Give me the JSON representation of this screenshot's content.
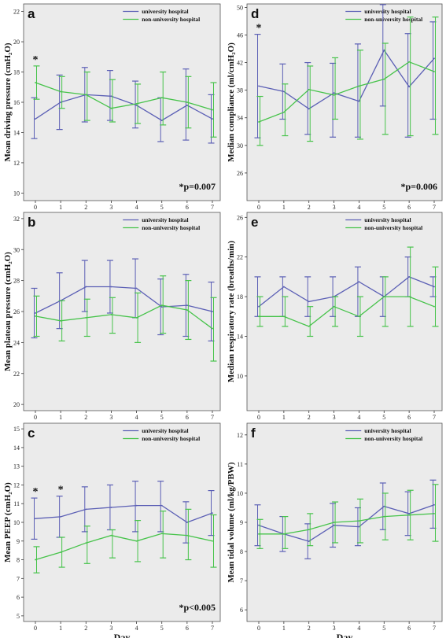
{
  "colors": {
    "university": "#5b5fb5",
    "non_university": "#46c34a",
    "plot_bg": "#ebebeb"
  },
  "chart_data": [
    {
      "panel": "a",
      "type": "line",
      "xlabel": "",
      "ylabel": "Mean driving pressure (cmH₂O)",
      "x": [
        0,
        1,
        2,
        3,
        4,
        5,
        6,
        7
      ],
      "ylim": [
        9.5,
        22.5
      ],
      "yticks": [
        "10",
        "12",
        "14",
        "16",
        "18",
        "20",
        "22"
      ],
      "legend": "top-right",
      "annotation": "*p=0.007",
      "stars": [
        {
          "x": 0,
          "text": "*"
        }
      ],
      "series": [
        {
          "name": "university hospital",
          "values": [
            14.9,
            16.0,
            16.5,
            16.4,
            15.8,
            14.8,
            15.8,
            14.9
          ],
          "low": [
            13.6,
            14.2,
            14.7,
            14.8,
            14.3,
            13.4,
            13.5,
            13.3
          ],
          "high": [
            16.3,
            17.8,
            18.3,
            18.1,
            17.4,
            16.3,
            18.2,
            16.5
          ]
        },
        {
          "name": "non-university hospital",
          "values": [
            17.3,
            16.7,
            16.5,
            15.6,
            15.9,
            16.3,
            16.0,
            15.5
          ],
          "low": [
            16.2,
            15.6,
            14.8,
            14.7,
            14.6,
            14.5,
            14.3,
            13.7
          ],
          "high": [
            18.4,
            17.7,
            18.0,
            17.5,
            17.2,
            18.0,
            17.7,
            17.3
          ]
        }
      ]
    },
    {
      "panel": "b",
      "type": "line",
      "xlabel": "",
      "ylabel": "Mean plateau pressure (cmH₂O)",
      "x": [
        0,
        1,
        2,
        3,
        4,
        5,
        6,
        7
      ],
      "ylim": [
        19.6,
        32.4
      ],
      "yticks": [
        "20",
        "22",
        "24",
        "26",
        "28",
        "30",
        "32"
      ],
      "legend": "top-right",
      "series": [
        {
          "name": "university hospital",
          "values": [
            25.9,
            26.7,
            27.6,
            27.6,
            27.5,
            26.3,
            26.4,
            26.0
          ],
          "low": [
            24.3,
            24.9,
            26.0,
            25.9,
            25.6,
            24.5,
            24.4,
            24.1
          ],
          "high": [
            27.5,
            28.5,
            29.3,
            29.3,
            29.4,
            28.1,
            28.4,
            27.9
          ]
        },
        {
          "name": "non-university hospital",
          "values": [
            25.7,
            25.4,
            25.6,
            25.8,
            25.6,
            26.4,
            26.1,
            24.9
          ],
          "low": [
            24.4,
            24.1,
            24.4,
            24.6,
            24.0,
            24.6,
            24.2,
            22.8
          ],
          "high": [
            27.0,
            26.7,
            26.8,
            26.9,
            27.2,
            28.3,
            28.0,
            26.9
          ]
        }
      ]
    },
    {
      "panel": "c",
      "type": "line",
      "xlabel": "Day",
      "ylabel": "Mean PEEP (cmH₂O)",
      "x": [
        0,
        1,
        2,
        3,
        4,
        5,
        6,
        7
      ],
      "ylim": [
        4.7,
        15.3
      ],
      "yticks": [
        "5",
        "6",
        "7",
        "8",
        "9",
        "10",
        "11",
        "12",
        "13",
        "14",
        "15"
      ],
      "legend": "top-right",
      "annotation": "*p<0.005",
      "stars": [
        {
          "x": 0,
          "text": "*"
        },
        {
          "x": 1,
          "text": "*"
        }
      ],
      "series": [
        {
          "name": "university hospital",
          "values": [
            10.2,
            10.3,
            10.7,
            10.8,
            10.9,
            10.9,
            10.0,
            10.5
          ],
          "low": [
            9.1,
            9.2,
            9.5,
            9.6,
            9.5,
            9.5,
            8.9,
            9.3
          ],
          "high": [
            11.3,
            11.4,
            11.9,
            12.0,
            12.2,
            12.2,
            11.1,
            11.7
          ]
        },
        {
          "name": "non-university hospital",
          "values": [
            8.0,
            8.4,
            8.9,
            9.3,
            9.0,
            9.4,
            9.3,
            9.0
          ],
          "low": [
            7.3,
            7.6,
            7.8,
            8.1,
            7.9,
            8.1,
            8.0,
            7.6
          ],
          "high": [
            8.7,
            9.2,
            9.8,
            9.6,
            10.1,
            10.6,
            10.7,
            10.4
          ]
        }
      ]
    },
    {
      "panel": "d",
      "type": "line",
      "xlabel": "",
      "ylabel": "Median compliance (ml/cmH₂O)",
      "x": [
        0,
        1,
        2,
        3,
        4,
        5,
        6,
        7
      ],
      "ylim": [
        22.0,
        50.5
      ],
      "yticks": [
        "26",
        "30",
        "34",
        "38",
        "42",
        "46",
        "50"
      ],
      "legend": "top-right",
      "annotation": "*p=0.006",
      "stars": [
        {
          "x": 0,
          "text": "*"
        }
      ],
      "series": [
        {
          "name": "university hospital",
          "values": [
            38.6,
            37.8,
            35.3,
            37.6,
            36.4,
            43.8,
            38.5,
            42.6
          ],
          "low": [
            31.1,
            33.8,
            31.6,
            31.2,
            31.2,
            35.7,
            31.2,
            33.8
          ],
          "high": [
            46.1,
            41.8,
            42.0,
            41.9,
            44.7,
            50.4,
            46.2,
            47.9
          ]
        },
        {
          "name": "non-university hospital",
          "values": [
            33.4,
            34.8,
            38.1,
            37.3,
            38.6,
            39.6,
            42.1,
            40.7
          ],
          "low": [
            30.0,
            31.4,
            30.6,
            33.8,
            30.9,
            31.6,
            31.4,
            31.6
          ],
          "high": [
            37.1,
            38.9,
            41.5,
            42.7,
            43.8,
            44.8,
            48.6,
            48.6
          ]
        }
      ]
    },
    {
      "panel": "e",
      "type": "line",
      "xlabel": "",
      "ylabel": "Median respiratory rate (breaths/min)",
      "x": [
        0,
        1,
        2,
        3,
        4,
        5,
        6,
        7
      ],
      "ylim": [
        6.5,
        26.5
      ],
      "yticks": [
        "10",
        "14",
        "18",
        "22",
        "26"
      ],
      "legend": "top-right",
      "series": [
        {
          "name": "university hospital",
          "values": [
            17.0,
            19.0,
            17.5,
            18.0,
            19.5,
            18.0,
            20.0,
            19.0
          ],
          "low": [
            16.0,
            16.0,
            16.0,
            16.0,
            16.0,
            16.0,
            18.0,
            18.0
          ],
          "high": [
            20.0,
            20.0,
            20.0,
            20.0,
            21.0,
            20.0,
            22.0,
            20.0
          ]
        },
        {
          "name": "non-university hospital",
          "values": [
            16.0,
            16.0,
            15.0,
            17.0,
            16.0,
            18.0,
            18.0,
            17.0
          ],
          "low": [
            15.0,
            15.0,
            14.0,
            15.0,
            14.0,
            15.0,
            15.0,
            15.0
          ],
          "high": [
            18.0,
            18.0,
            17.0,
            18.0,
            18.0,
            20.0,
            23.0,
            21.0
          ]
        }
      ]
    },
    {
      "panel": "f",
      "type": "line",
      "xlabel": "Day",
      "ylabel": "Mean tidal volume (ml/kg/PBW)",
      "x": [
        0,
        1,
        2,
        3,
        4,
        5,
        6,
        7
      ],
      "ylim": [
        5.6,
        12.4
      ],
      "yticks": [
        "6",
        "7",
        "8",
        "9",
        "10",
        "11",
        "12"
      ],
      "legend": "top-right",
      "series": [
        {
          "name": "university hospital",
          "values": [
            8.9,
            8.6,
            8.35,
            8.9,
            8.85,
            9.55,
            9.3,
            9.6
          ],
          "low": [
            8.2,
            8.0,
            7.75,
            8.15,
            8.2,
            8.75,
            8.55,
            8.8
          ],
          "high": [
            9.6,
            9.2,
            8.95,
            9.65,
            9.5,
            10.35,
            10.05,
            10.45
          ]
        },
        {
          "name": "non-university hospital",
          "values": [
            8.6,
            8.6,
            8.75,
            9.0,
            9.05,
            9.2,
            9.25,
            9.3
          ],
          "low": [
            8.1,
            8.1,
            8.2,
            8.3,
            8.3,
            8.4,
            8.4,
            8.35
          ],
          "high": [
            9.1,
            9.2,
            9.3,
            9.7,
            9.8,
            10.0,
            10.1,
            10.3
          ]
        }
      ]
    }
  ]
}
